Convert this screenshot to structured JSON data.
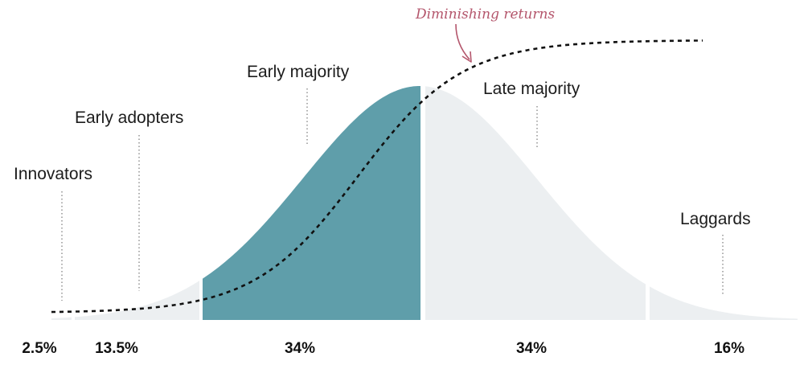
{
  "segments": [
    {
      "name": "Innovators",
      "share": "2.5%",
      "highlight": false
    },
    {
      "name": "Early adopters",
      "share": "13.5%",
      "highlight": false
    },
    {
      "name": "Early majority",
      "share": "34%",
      "highlight": true
    },
    {
      "name": "Late majority",
      "share": "34%",
      "highlight": false
    },
    {
      "name": "Laggards",
      "share": "16%",
      "highlight": false
    }
  ],
  "annotation": {
    "text": "Diminishing returns"
  },
  "colors": {
    "highlight": "#5f9eaa",
    "base": "#eceff1",
    "annotation": "#b4566c",
    "curve": "#111111"
  }
}
